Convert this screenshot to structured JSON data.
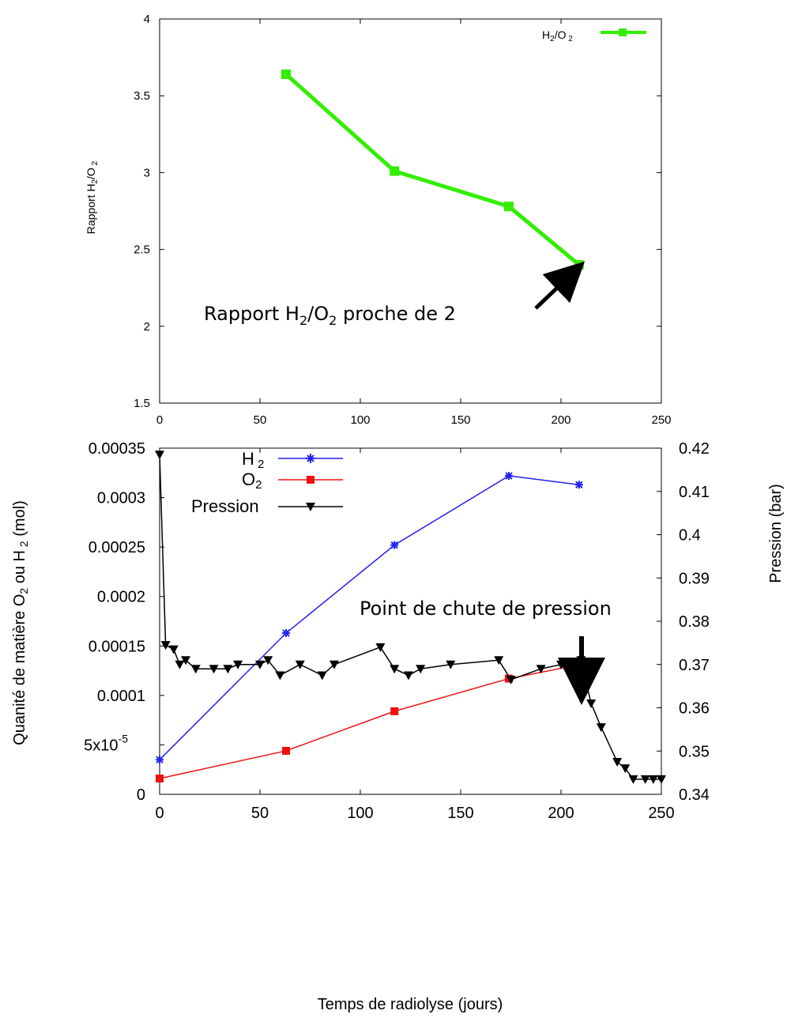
{
  "chart_data": [
    {
      "type": "line",
      "title": "",
      "xlabel": "",
      "ylabel": "Rapport H2/O2",
      "xlim": [
        0,
        250
      ],
      "ylim": [
        1.5,
        4
      ],
      "x_ticks": [
        "0",
        "50",
        "100",
        "150",
        "200",
        "250"
      ],
      "y_ticks": [
        "1.5",
        "2",
        "2.5",
        "3",
        "3.5",
        "4"
      ],
      "grid": false,
      "legend_position": "top-right",
      "series": [
        {
          "name": "H2/O2",
          "color": "#33ee00",
          "marker": "square",
          "x": [
            63,
            117,
            174,
            209
          ],
          "y": [
            3.64,
            3.01,
            2.78,
            2.4
          ]
        }
      ],
      "annotations": [
        {
          "text_parts": {
            "pre": "Rapport H",
            "sub1": "2",
            "mid": "/O",
            "sub2": "2",
            "post": " proche de 2"
          },
          "points_to": [
            209,
            2.4
          ]
        }
      ]
    },
    {
      "type": "line",
      "title": "",
      "xlabel": "Temps de radiolyse (jours)",
      "ylabel": "Quanité de matière O2 ou H2 (mol)",
      "y2label": "Pression (bar)",
      "xlim": [
        0,
        250
      ],
      "ylim": [
        0,
        0.00035
      ],
      "y2lim": [
        0.34,
        0.42
      ],
      "x_ticks": [
        "0",
        "50",
        "100",
        "150",
        "200",
        "250"
      ],
      "y_ticks": [
        "0",
        "5x10",
        "0.0001",
        "0.00015",
        "0.0002",
        "0.00025",
        "0.0003",
        "0.00035"
      ],
      "y_tick_exponent": "-5",
      "y2_ticks": [
        "0.34",
        "0.35",
        "0.36",
        "0.37",
        "0.38",
        "0.39",
        "0.4",
        "0.41",
        "0.42"
      ],
      "grid": false,
      "legend_position": "top-left",
      "series": [
        {
          "name": "H2",
          "color": "#2222ee",
          "marker": "star",
          "axis": "left",
          "x": [
            0,
            63,
            117,
            174,
            209
          ],
          "y": [
            3.5e-05,
            0.000163,
            0.000252,
            0.000322,
            0.000313
          ]
        },
        {
          "name": "O2",
          "color": "#ee1111",
          "marker": "square",
          "axis": "left",
          "x": [
            0,
            63,
            117,
            174,
            209
          ],
          "y": [
            1.6e-05,
            4.4e-05,
            8.4e-05,
            0.000117,
            0.000131
          ]
        },
        {
          "name": "Pression",
          "color": "#000000",
          "marker": "triangle-down",
          "axis": "right",
          "x": [
            0,
            3,
            7,
            10,
            13,
            18,
            27,
            34,
            39,
            50,
            54,
            60,
            70,
            81,
            87,
            110,
            117,
            124,
            130,
            145,
            169,
            175,
            190,
            200,
            205,
            210,
            215,
            220,
            228,
            232,
            236,
            242,
            246,
            250
          ],
          "y": [
            0.4185,
            0.3745,
            0.3735,
            0.37,
            0.371,
            0.369,
            0.369,
            0.369,
            0.37,
            0.37,
            0.371,
            0.3675,
            0.37,
            0.3675,
            0.37,
            0.374,
            0.369,
            0.3675,
            0.369,
            0.37,
            0.371,
            0.3665,
            0.369,
            0.37,
            0.369,
            0.371,
            0.361,
            0.3555,
            0.3475,
            0.346,
            0.3435,
            0.3435,
            0.3435,
            0.3435
          ]
        }
      ],
      "annotations": [
        {
          "text": "Point de chute de pression",
          "points_to": [
            209,
            0.371
          ]
        }
      ]
    }
  ]
}
